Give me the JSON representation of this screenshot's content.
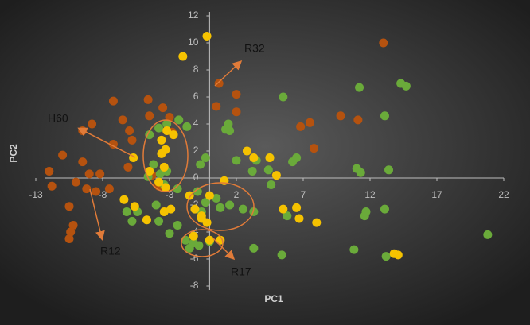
{
  "chart_data": {
    "type": "scatter",
    "xlabel": "PC1",
    "ylabel": "PC2",
    "annotations": [
      "R32",
      "H60",
      "R12",
      "R17"
    ],
    "xlim": [
      -13,
      22
    ],
    "xticks": [
      -13,
      -8,
      -3,
      2,
      7,
      12,
      17,
      22
    ],
    "ylim": [
      -8,
      12
    ],
    "yticks": [
      -8,
      -6,
      -4,
      -2,
      0,
      2,
      4,
      6,
      8,
      10,
      12
    ],
    "grid": false,
    "series": [
      {
        "color": "#b5520f",
        "x": [
          13,
          0.7,
          2,
          0.5,
          2,
          -7.2,
          -4.6,
          -3.5,
          -4.5,
          -3,
          -9.5,
          -8.8,
          -6.5,
          -6,
          -7.2,
          -5.8,
          -11,
          -9.5,
          -12,
          -9,
          -8.2,
          -10,
          -11.8,
          -9.2,
          -8.5,
          -7.5,
          -10.5,
          -10.2,
          -10.4,
          -10.5,
          -2.8,
          -4.3,
          -6.1,
          7.5,
          6.8,
          9.8,
          11.1,
          7.8,
          -3.8,
          -2.7
        ],
        "values": [
          10,
          7,
          6.2,
          5.3,
          4.9,
          5.7,
          5.8,
          5.2,
          4.6,
          4.5,
          3.5,
          4,
          4.3,
          3.5,
          2.5,
          2.8,
          1.7,
          1.2,
          0.5,
          0.3,
          0.3,
          -0.3,
          -0.6,
          -0.8,
          -1,
          -0.8,
          -2.1,
          -3.5,
          -4,
          -4.5,
          3.4,
          0.2,
          0.8,
          4.1,
          3.8,
          4.6,
          4.3,
          2.2,
          -0.6,
          3.2
        ]
      },
      {
        "color": "#6aaa3a",
        "x": [
          14.3,
          14.7,
          11.2,
          5.5,
          13.1,
          1.4,
          1.2,
          1.5,
          -3.2,
          -2.3,
          -1.7,
          -4.5,
          -3.8,
          -0.3,
          -0.7,
          2,
          3.5,
          4.5,
          6.5,
          6.2,
          11,
          11.3,
          13.4,
          3.2,
          4.4,
          -4.2,
          -3.7,
          -3.2,
          -4.6,
          -3.4,
          -2.4,
          -0.9,
          -0.3,
          0.5,
          1.5,
          2.5,
          3.3,
          0.8,
          -0.6,
          -4,
          -5.4,
          -6.2,
          -5.8,
          -3.8,
          -2.4,
          -3,
          -1.8,
          -1.2,
          -1.5,
          0,
          -0.8,
          5.8,
          11.7,
          11.6,
          13.1,
          20.8,
          3.3,
          5.4,
          10.8,
          13.2,
          4.6
        ],
        "values": [
          7,
          6.8,
          6.7,
          6,
          4.6,
          4,
          3.6,
          3.5,
          4,
          4.3,
          3.8,
          3.2,
          3.7,
          1.5,
          1,
          1.3,
          1.3,
          1.5,
          1.5,
          1.2,
          0.7,
          0.4,
          0.6,
          0.5,
          0.6,
          1,
          0.3,
          0.5,
          0.1,
          -0.5,
          -0.8,
          -1,
          -1.8,
          -1.5,
          -2,
          -2.3,
          -2.5,
          -2.2,
          -2.5,
          -2,
          -2.5,
          -2.5,
          -3.2,
          -3.2,
          -3.5,
          -4.1,
          -4.6,
          -4.8,
          -5.2,
          -4.7,
          -5,
          -2.8,
          -2.5,
          -2.8,
          -2.3,
          -4.2,
          -5.2,
          -5.7,
          -5.3,
          -5.8,
          -0.5
        ]
      },
      {
        "color": "#f5c200",
        "x": [
          -0.2,
          -2,
          -3.3,
          -3.6,
          -3.2,
          -2.7,
          -5.7,
          -3.6,
          -3.4,
          -4.5,
          -3.8,
          -3.3,
          1.1,
          2.8,
          3.3,
          4.5,
          5,
          -1.5,
          0,
          -1.1,
          -0.6,
          -2.9,
          -3.4,
          -5.6,
          -6.4,
          -4.7,
          -0.6,
          -0.2,
          -1.2,
          0,
          0.8,
          5.5,
          6.5,
          6.7,
          8,
          13.8,
          14.1
        ],
        "values": [
          10.5,
          9,
          2.1,
          2.8,
          3.5,
          3.2,
          1.5,
          1.8,
          0.8,
          0.5,
          -0.3,
          -0.7,
          -0.2,
          2,
          1.5,
          1.5,
          0.2,
          -1.3,
          -1.3,
          -2.3,
          -2.8,
          -2.3,
          -2.5,
          -2.1,
          -1.6,
          -3.1,
          -3,
          -3.3,
          -4.3,
          -4.6,
          -4.6,
          -2.3,
          -2.2,
          -3,
          -3.3,
          -5.6,
          -5.7
        ]
      }
    ]
  }
}
